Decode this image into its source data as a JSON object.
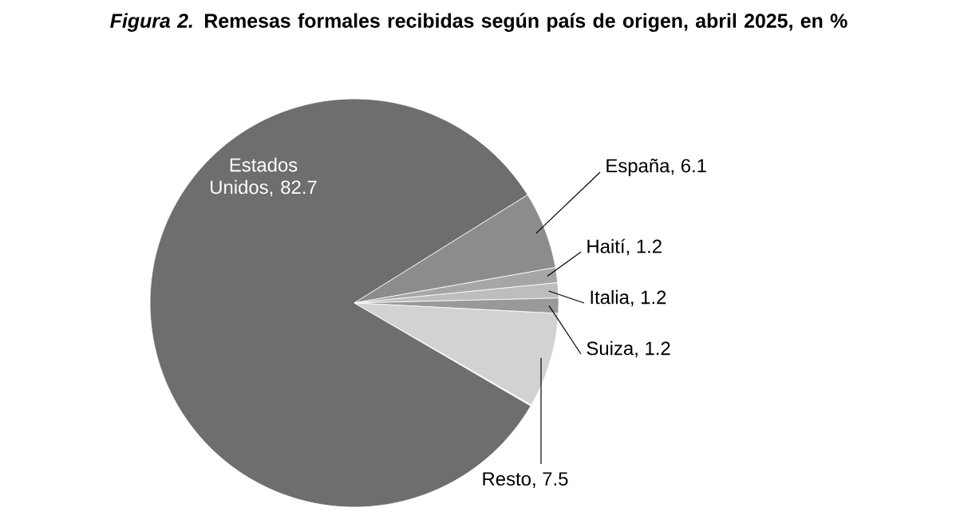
{
  "chart_data": {
    "type": "pie",
    "title": "*Figura 2.* Remesas formales recibidas según país de origen, abril 2025, en %",
    "categories": [
      "Estados Unidos",
      "España",
      "Haití",
      "Italia",
      "Suiza",
      "Resto"
    ],
    "values": [
      82.7,
      6.1,
      1.2,
      1.2,
      1.2,
      7.5
    ],
    "colors": [
      "#6e6e6e",
      "#8c8c8c",
      "#a6a6a6",
      "#bdbdbd",
      "#999999",
      "#d2d2d2"
    ],
    "value_labels": [
      ", 82.7",
      ", 6.1",
      ", 1.2",
      ", 1.2",
      ", 1.2",
      ", 7.5"
    ]
  }
}
